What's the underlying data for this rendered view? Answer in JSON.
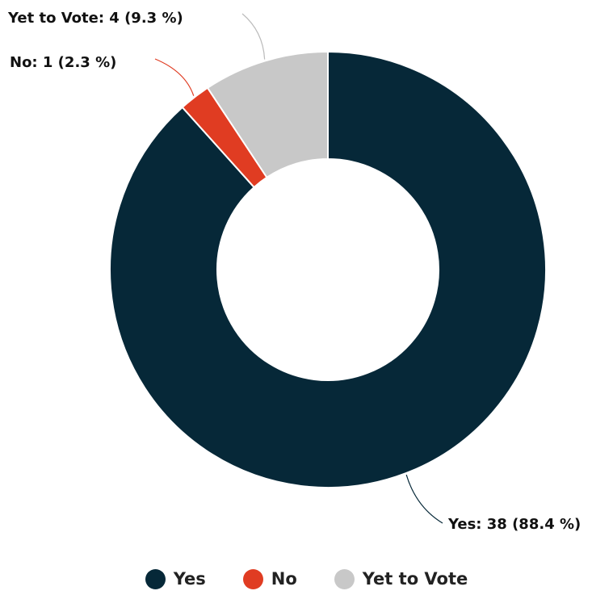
{
  "chart_data": {
    "type": "pie",
    "donut": true,
    "title": "",
    "series": [
      {
        "name": "Yes",
        "value": 38,
        "percent": 88.4,
        "color": "#062838",
        "label": "Yes: 38 (88.4 %)"
      },
      {
        "name": "No",
        "value": 1,
        "percent": 2.3,
        "color": "#E03C22",
        "label": "No: 1 (2.3 %)"
      },
      {
        "name": "Yet to Vote",
        "value": 4,
        "percent": 9.3,
        "color": "#C8C8C8",
        "label": "Yet to Vote: 4 (9.3 %)"
      }
    ],
    "legend_position": "bottom",
    "start_angle": "top, clockwise"
  },
  "legend": {
    "items": [
      {
        "label": "Yes",
        "color": "#062838"
      },
      {
        "label": "No",
        "color": "#E03C22"
      },
      {
        "label": "Yet to Vote",
        "color": "#C8C8C8"
      }
    ]
  }
}
